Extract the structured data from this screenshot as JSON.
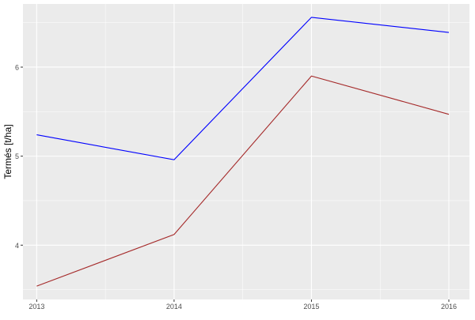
{
  "chart_data": {
    "type": "line",
    "title": "",
    "xlabel": "",
    "ylabel": "Termés [t/ha]",
    "x": [
      2013,
      2014,
      2015,
      2016
    ],
    "x_tick_labels": [
      "2013",
      "2014",
      "2015",
      "2016"
    ],
    "y_ticks": [
      4,
      5,
      6
    ],
    "y_tick_labels": [
      "4",
      "5",
      "6"
    ],
    "xlim": [
      2012.9,
      2016.15
    ],
    "ylim": [
      3.39,
      6.71
    ],
    "grid": true,
    "legend": "none",
    "background": "#EBEBEB",
    "series": [
      {
        "color": "#0000FF",
        "values": [
          5.24,
          4.96,
          6.56,
          6.39
        ]
      },
      {
        "color": "#A52A2A",
        "values": [
          3.54,
          4.12,
          5.9,
          5.47
        ]
      }
    ]
  }
}
